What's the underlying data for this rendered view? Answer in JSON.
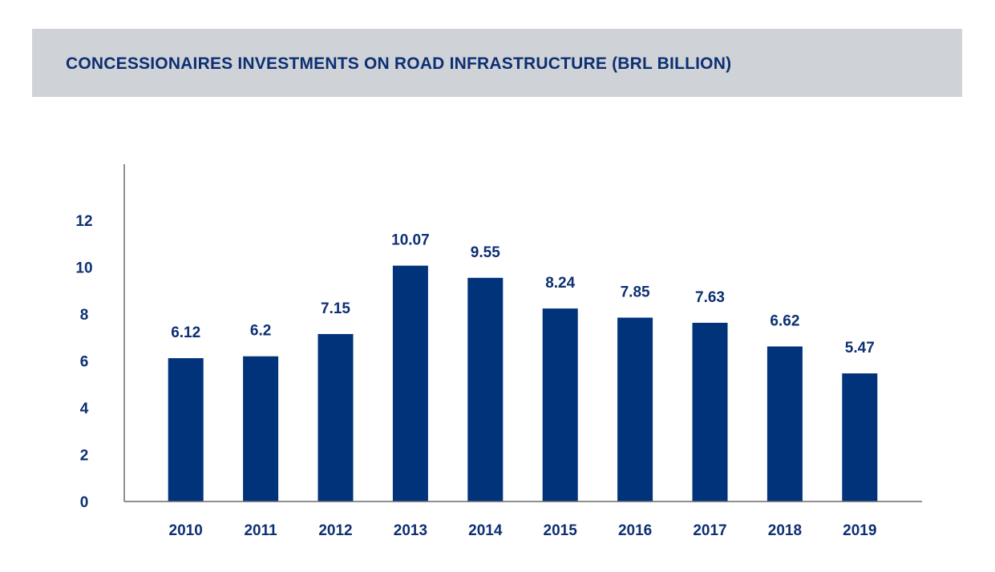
{
  "title": "CONCESSIONAIRES INVESTMENTS ON ROAD INFRASTRUCTURE (BRL BILLION)",
  "chart_data": {
    "type": "bar",
    "title": "CONCESSIONAIRES INVESTMENTS ON ROAD INFRASTRUCTURE (BRL BILLION)",
    "xlabel": "",
    "ylabel": "",
    "categories": [
      "2010",
      "2011",
      "2012",
      "2013",
      "2014",
      "2015",
      "2016",
      "2017",
      "2018",
      "2019"
    ],
    "values": [
      6.12,
      6.2,
      7.15,
      10.07,
      9.55,
      8.24,
      7.85,
      7.63,
      6.62,
      5.47
    ],
    "value_labels": [
      "6.12",
      "6.2",
      "7.15",
      "10.07",
      "9.55",
      "8.24",
      "7.85",
      "7.63",
      "6.62",
      "5.47"
    ],
    "yticks": [
      0,
      2,
      4,
      6,
      8,
      10,
      12
    ],
    "ylim": [
      0,
      14.4
    ],
    "grid": false,
    "legend": "none",
    "bar_color": "#00337a",
    "text_color": "#0d2f73"
  }
}
